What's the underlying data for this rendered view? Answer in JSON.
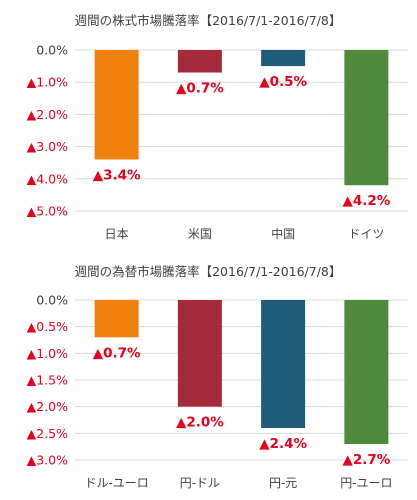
{
  "chart_data": [
    {
      "type": "bar",
      "title": "週間の株式市場騰落率【2016/7/1-2016/7/8】",
      "categories": [
        "日本",
        "米国",
        "中国",
        "ドイツ"
      ],
      "values": [
        -3.4,
        -0.7,
        -0.5,
        -4.2
      ],
      "data_labels": [
        "▲3.4%",
        "▲0.7%",
        "▲0.5%",
        "▲4.2%"
      ],
      "colors": [
        "#f0810f",
        "#a52a3a",
        "#1f5c7a",
        "#4f8a3c"
      ],
      "ylim": [
        -5.0,
        0.0
      ],
      "yticks": [
        0.0,
        -1.0,
        -2.0,
        -3.0,
        -4.0,
        -5.0
      ],
      "ytick_labels": [
        "0.0%",
        "▲1.0%",
        "▲2.0%",
        "▲3.0%",
        "▲4.0%",
        "▲5.0%"
      ],
      "grid": true,
      "xlabel": "",
      "ylabel": ""
    },
    {
      "type": "bar",
      "title": "週間の為替市場騰落率【2016/7/1-2016/7/8】",
      "categories": [
        "ドル-ユーロ",
        "円-ドル",
        "円-元",
        "円-ユーロ"
      ],
      "values": [
        -0.7,
        -2.0,
        -2.4,
        -2.7
      ],
      "data_labels": [
        "▲0.7%",
        "▲2.0%",
        "▲2.4%",
        "▲2.7%"
      ],
      "colors": [
        "#f0810f",
        "#a52a3a",
        "#1f5c7a",
        "#4f8a3c"
      ],
      "ylim": [
        -3.0,
        0.0
      ],
      "yticks": [
        0.0,
        -0.5,
        -1.0,
        -1.5,
        -2.0,
        -2.5,
        -3.0
      ],
      "ytick_labels": [
        "0.0%",
        "▲0.5%",
        "▲1.0%",
        "▲1.5%",
        "▲2.0%",
        "▲2.5%",
        "▲3.0%"
      ],
      "grid": true,
      "xlabel": "",
      "ylabel": ""
    }
  ]
}
